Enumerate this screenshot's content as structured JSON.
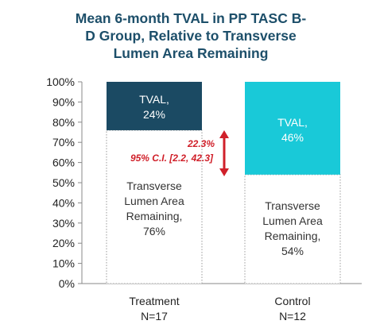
{
  "chart_data": {
    "type": "bar",
    "stacked": true,
    "title_lines": [
      "Mean 6-month TVAL in PP TASC B-",
      "D Group, Relative to Transverse",
      "Lumen Area Remaining"
    ],
    "y_ticks": [
      "0%",
      "10%",
      "20%",
      "30%",
      "40%",
      "50%",
      "60%",
      "70%",
      "80%",
      "90%",
      "100%"
    ],
    "ylim": [
      0,
      100
    ],
    "grid": false,
    "categories": [
      {
        "line1": "Treatment",
        "line2": "N=17"
      },
      {
        "line1": "Control",
        "line2": "N=12"
      }
    ],
    "series": [
      {
        "values": [
          76,
          54
        ],
        "labels": [
          [
            "Transverse",
            "Lumen Area",
            "Remaining,",
            "76%"
          ],
          [
            "Transverse",
            "Lumen Area",
            "Remaining,",
            "54%"
          ]
        ],
        "fill": "#ffffff",
        "border": "#9a9a9a",
        "text_color": "#333333"
      },
      {
        "values": [
          24,
          46
        ],
        "labels": [
          [
            "TVAL,",
            "24%"
          ],
          [
            "TVAL,",
            "46%"
          ]
        ],
        "fills": [
          "#1b4a63",
          "#19c9d8"
        ],
        "text_color": "#ffffff"
      }
    ],
    "annotation": {
      "value_text": "22.3%",
      "ci_text": "95% C.I. [2.2, 42.3]",
      "color": "#d0202a"
    }
  }
}
